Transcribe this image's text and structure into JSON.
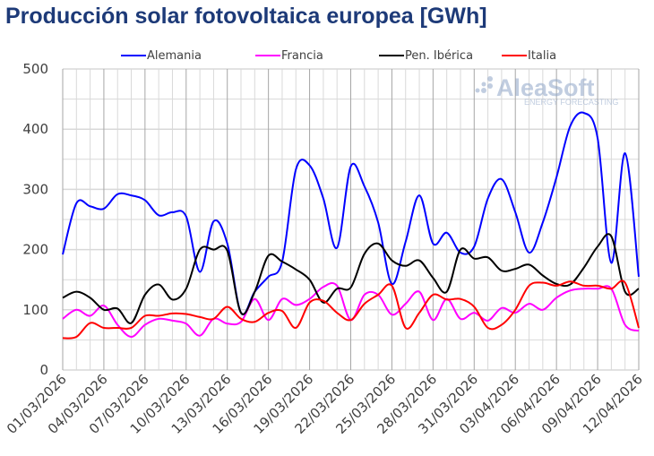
{
  "chart_data": {
    "type": "line",
    "title": "Producción solar fotovoltaica europea [GWh]",
    "xlabel": "",
    "ylabel": "",
    "ylim": [
      0,
      500
    ],
    "yticks": [
      0,
      100,
      200,
      300,
      400,
      500
    ],
    "grid": true,
    "legend": "top",
    "x": [
      "01/03/2026",
      "02/03/2026",
      "03/03/2026",
      "04/03/2026",
      "05/03/2026",
      "06/03/2026",
      "07/03/2026",
      "08/03/2026",
      "09/03/2026",
      "10/03/2026",
      "11/03/2026",
      "12/03/2026",
      "13/03/2026",
      "14/03/2026",
      "15/03/2026",
      "16/03/2026",
      "17/03/2026",
      "18/03/2026",
      "19/03/2026",
      "20/03/2026",
      "21/03/2026",
      "22/03/2026",
      "23/03/2026",
      "24/03/2026",
      "25/03/2026",
      "26/03/2026",
      "27/03/2026",
      "28/03/2026",
      "29/03/2026",
      "30/03/2026",
      "31/03/2026",
      "01/04/2026",
      "02/04/2026",
      "03/04/2026",
      "04/04/2026",
      "05/04/2026",
      "06/04/2026",
      "07/04/2026",
      "08/04/2026",
      "09/04/2026",
      "10/04/2026",
      "11/04/2026",
      "12/04/2026"
    ],
    "xticks": [
      "01/03/2026",
      "04/03/2026",
      "07/03/2026",
      "10/03/2026",
      "13/03/2026",
      "16/03/2026",
      "19/03/2026",
      "22/03/2026",
      "25/03/2026",
      "28/03/2026",
      "31/03/2026",
      "03/04/2026",
      "06/04/2026",
      "09/04/2026",
      "12/04/2026"
    ],
    "series": [
      {
        "name": "Alemania",
        "color": "#0000ff",
        "values": [
          192,
          277,
          272,
          268,
          292,
          290,
          282,
          257,
          262,
          255,
          163,
          247,
          210,
          95,
          130,
          155,
          180,
          333,
          340,
          285,
          203,
          338,
          305,
          245,
          143,
          213,
          290,
          210,
          228,
          195,
          205,
          285,
          317,
          262,
          195,
          245,
          320,
          405,
          427,
          385,
          178,
          360,
          155
        ]
      },
      {
        "name": "Francia",
        "color": "#ff00ff",
        "values": [
          85,
          100,
          90,
          107,
          75,
          55,
          75,
          85,
          82,
          77,
          57,
          85,
          77,
          80,
          118,
          83,
          118,
          108,
          118,
          138,
          140,
          83,
          125,
          125,
          92,
          110,
          130,
          83,
          118,
          85,
          95,
          82,
          103,
          95,
          110,
          100,
          120,
          132,
          135,
          135,
          135,
          75,
          65
        ]
      },
      {
        "name": "Pen. Ibérica",
        "color": "#000000",
        "values": [
          120,
          130,
          120,
          100,
          102,
          78,
          125,
          142,
          117,
          135,
          200,
          200,
          198,
          95,
          130,
          190,
          180,
          167,
          150,
          112,
          135,
          137,
          193,
          210,
          182,
          173,
          182,
          153,
          130,
          200,
          185,
          187,
          165,
          168,
          175,
          157,
          143,
          142,
          170,
          205,
          222,
          130,
          135
        ]
      },
      {
        "name": "Italia",
        "color": "#ff0000",
        "values": [
          53,
          55,
          78,
          70,
          70,
          70,
          90,
          90,
          94,
          93,
          88,
          85,
          105,
          85,
          80,
          95,
          98,
          70,
          112,
          115,
          95,
          83,
          110,
          125,
          140,
          70,
          95,
          125,
          117,
          118,
          105,
          70,
          75,
          100,
          140,
          145,
          140,
          147,
          140,
          140,
          135,
          145,
          70
        ]
      }
    ]
  },
  "watermark": {
    "brand": "AleaSoft",
    "tagline": "ENERGY FORECASTING"
  }
}
